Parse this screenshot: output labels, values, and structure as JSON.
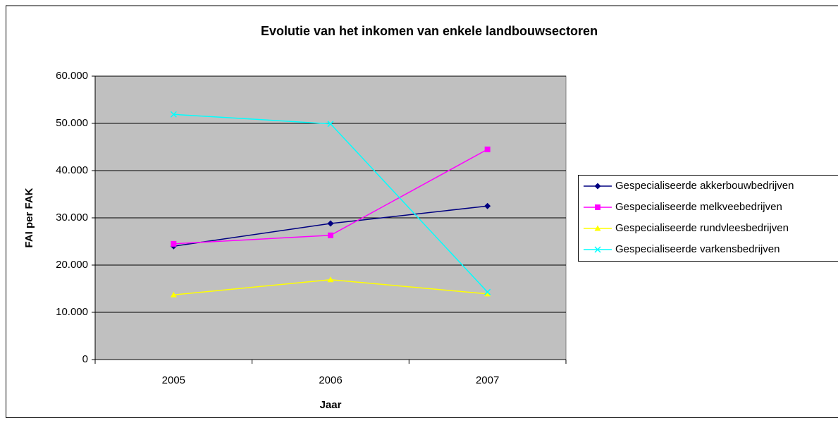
{
  "chart_data": {
    "type": "line",
    "title": "Evolutie van het inkomen van enkele landbouwsectoren",
    "x_label": "Jaar",
    "y_label": "FAI per FAK",
    "categories": [
      "2005",
      "2006",
      "2007"
    ],
    "series": [
      {
        "name": "Gespecialiseerde akkerbouwbedrijven",
        "color": "#000080",
        "marker": "diamond",
        "values": [
          24000,
          28800,
          32500
        ]
      },
      {
        "name": "Gespecialiseerde melkveebedrijven",
        "color": "#ff00ff",
        "marker": "square",
        "values": [
          24500,
          26300,
          44500
        ]
      },
      {
        "name": "Gespecialiseerde rundvleesbedrijven",
        "color": "#ffff00",
        "marker": "triangle",
        "values": [
          13700,
          16900,
          13900
        ]
      },
      {
        "name": "Gespecialiseerde varkensbedrijven",
        "color": "#00ffff",
        "marker": "x",
        "values": [
          51900,
          49900,
          14300
        ]
      }
    ],
    "ylim": [
      0,
      60000
    ],
    "yticks": [
      0,
      {
        "value": 10000,
        "label": "10.000"
      },
      {
        "value": 20000,
        "label": "20.000"
      },
      {
        "value": 30000,
        "label": "30.000"
      },
      {
        "value": 40000,
        "label": "40.000"
      },
      {
        "value": 50000,
        "label": "50.000"
      },
      {
        "value": 60000,
        "label": "60.000"
      }
    ],
    "grid": true,
    "legend": "right"
  }
}
